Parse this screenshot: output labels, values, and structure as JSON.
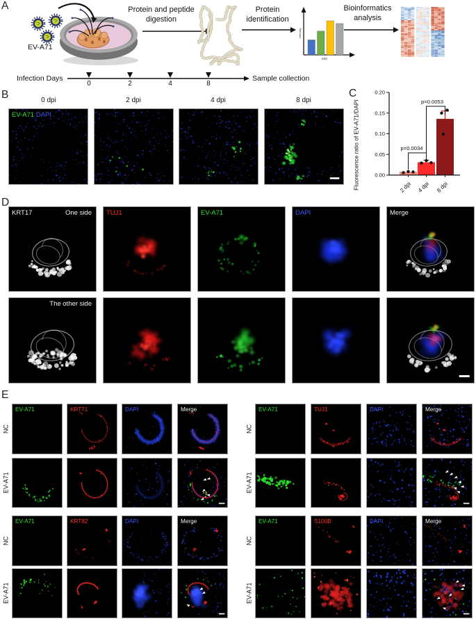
{
  "colors": {
    "green_label": "#2ee52e",
    "red_label": "#ff3226",
    "blue_label": "#3f58ff",
    "white_label": "#f0f0f0",
    "bar_2dpi": "#f5837d",
    "bar_4dpi": "#fb2b2b",
    "bar_8dpi": "#8c1a1b"
  },
  "panel_a": {
    "label": "A",
    "virus_label": "EV-A71",
    "steps": {
      "digestion": "Protein and peptide\ndigestion",
      "identification": "Protein\nidentification",
      "bioinformatics": "Bioinformatics\nanalysis"
    },
    "timeline": {
      "label": "Infection Days",
      "ticks": [
        "0",
        "2",
        "4",
        "8"
      ],
      "end_label": "Sample collection"
    }
  },
  "panel_b": {
    "label": "B",
    "columns": [
      "0 dpi",
      "2 dpi",
      "4 dpi",
      "8 dpi"
    ],
    "overlay_green": "EV-A71",
    "overlay_blue": "DAPI"
  },
  "panel_c": {
    "label": "C"
  },
  "chart_data": [
    {
      "type": "bar",
      "title": "",
      "ylabel": "Fluorescence ratio of EV-A71/DAPI",
      "xlabel": "",
      "categories": [
        "2 dpi",
        "4 dpi",
        "8 dpi"
      ],
      "values": [
        0.008,
        0.031,
        0.136
      ],
      "points": [
        [
          0.006,
          0.0085,
          0.0075
        ],
        [
          0.029,
          0.035,
          0.03
        ],
        [
          0.099,
          0.15,
          0.157
        ]
      ],
      "error_top": [
        0.01,
        0.036,
        0.155
      ],
      "ylim": [
        0,
        0.2
      ],
      "yticks": [
        "0.00",
        "0.05",
        "0.10",
        "0.15",
        "0.20"
      ],
      "ytick_values": [
        0,
        0.05,
        0.1,
        0.15,
        0.2
      ],
      "bar_colors": [
        "#f5837d",
        "#fb2b2b",
        "#8c1a1b"
      ],
      "annotations": [
        {
          "text": "p=0.0034",
          "between": [
            "2 dpi",
            "4 dpi"
          ]
        },
        {
          "text": "p=0.0053",
          "between": [
            "4 dpi",
            "8 dpi"
          ]
        }
      ],
      "grid": false,
      "legend_position": "none"
    },
    {
      "type": "bar",
      "title": "",
      "ylabel": "Intensity",
      "xlabel": "M/Z",
      "categories": [
        "",
        "",
        "",
        ""
      ],
      "values": [
        0.44,
        0.7,
        1.0,
        0.92
      ],
      "bar_colors": [
        "#4472c4",
        "#70ad47",
        "#ffc000",
        "#a6a6a6"
      ],
      "ylim": [
        0,
        1
      ],
      "note": "schematic mass-spectrum in workflow"
    }
  ],
  "panel_d": {
    "label": "D",
    "columns": [
      {
        "label": "KRT17",
        "color": "#f0f0f0"
      },
      {
        "label": "TUJ1",
        "color": "#ff3226"
      },
      {
        "label": "EV-A71",
        "color": "#2ee52e"
      },
      {
        "label": "DAPI",
        "color": "#3f58ff"
      },
      {
        "label": "Merge",
        "color": "#f0f0f0"
      }
    ],
    "row_tags": [
      "One side",
      "The other side"
    ]
  },
  "panel_e": {
    "label": "E",
    "row_labels": [
      "NC",
      "EV-A71"
    ],
    "col_colors": [
      "#2ee52e",
      "#ff3226",
      "#3f58ff",
      "#f0f0f0"
    ],
    "blocks": [
      {
        "marker": "KRT71",
        "columns": [
          "EV-A71",
          "KRT71",
          "DAPI",
          "Merge"
        ]
      },
      {
        "marker": "TUJ1",
        "columns": [
          "EV-A71",
          "TUJ1",
          "DAPI",
          "Merge"
        ]
      },
      {
        "marker": "KRT82",
        "columns": [
          "EV-A71",
          "KRT82",
          "DAPI",
          "Merge"
        ]
      },
      {
        "marker": "S100B",
        "columns": [
          "EV-A71",
          "S100B",
          "DAPI",
          "Merge"
        ]
      }
    ]
  }
}
